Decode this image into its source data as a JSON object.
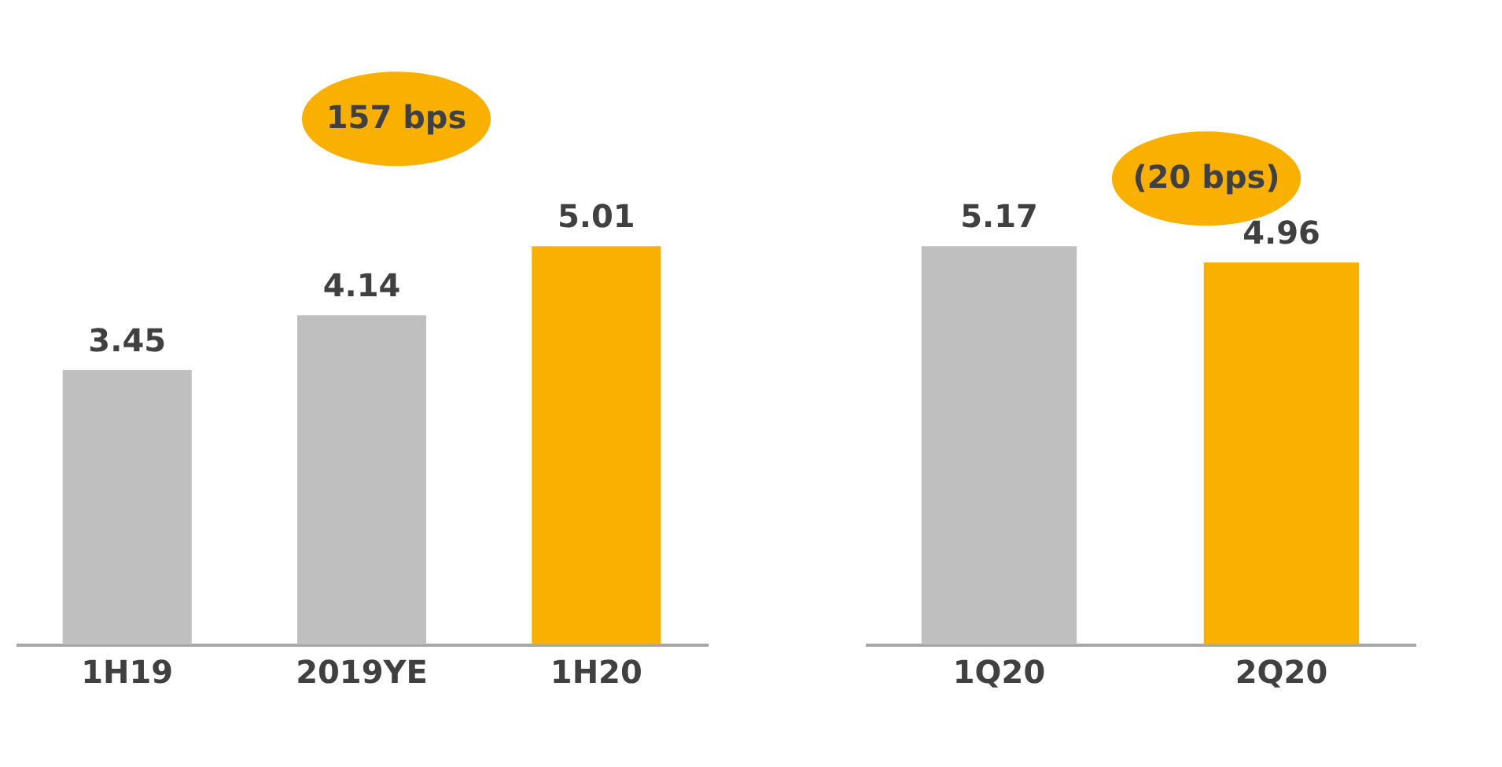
{
  "chart_data": [
    {
      "type": "bar",
      "categories": [
        "1H19",
        "2019YE",
        "1H20"
      ],
      "values": [
        3.45,
        4.14,
        5.01
      ],
      "colors": [
        "#bfbfbf",
        "#bfbfbf",
        "#f9b000"
      ],
      "data_labels": true,
      "annotations": [
        "157 bps"
      ]
    },
    {
      "type": "bar",
      "categories": [
        "1Q20",
        "2Q20"
      ],
      "values": [
        5.17,
        4.96
      ],
      "colors": [
        "#bfbfbf",
        "#f9b000"
      ],
      "data_labels": true,
      "annotations": [
        "(20 bps)"
      ]
    }
  ]
}
